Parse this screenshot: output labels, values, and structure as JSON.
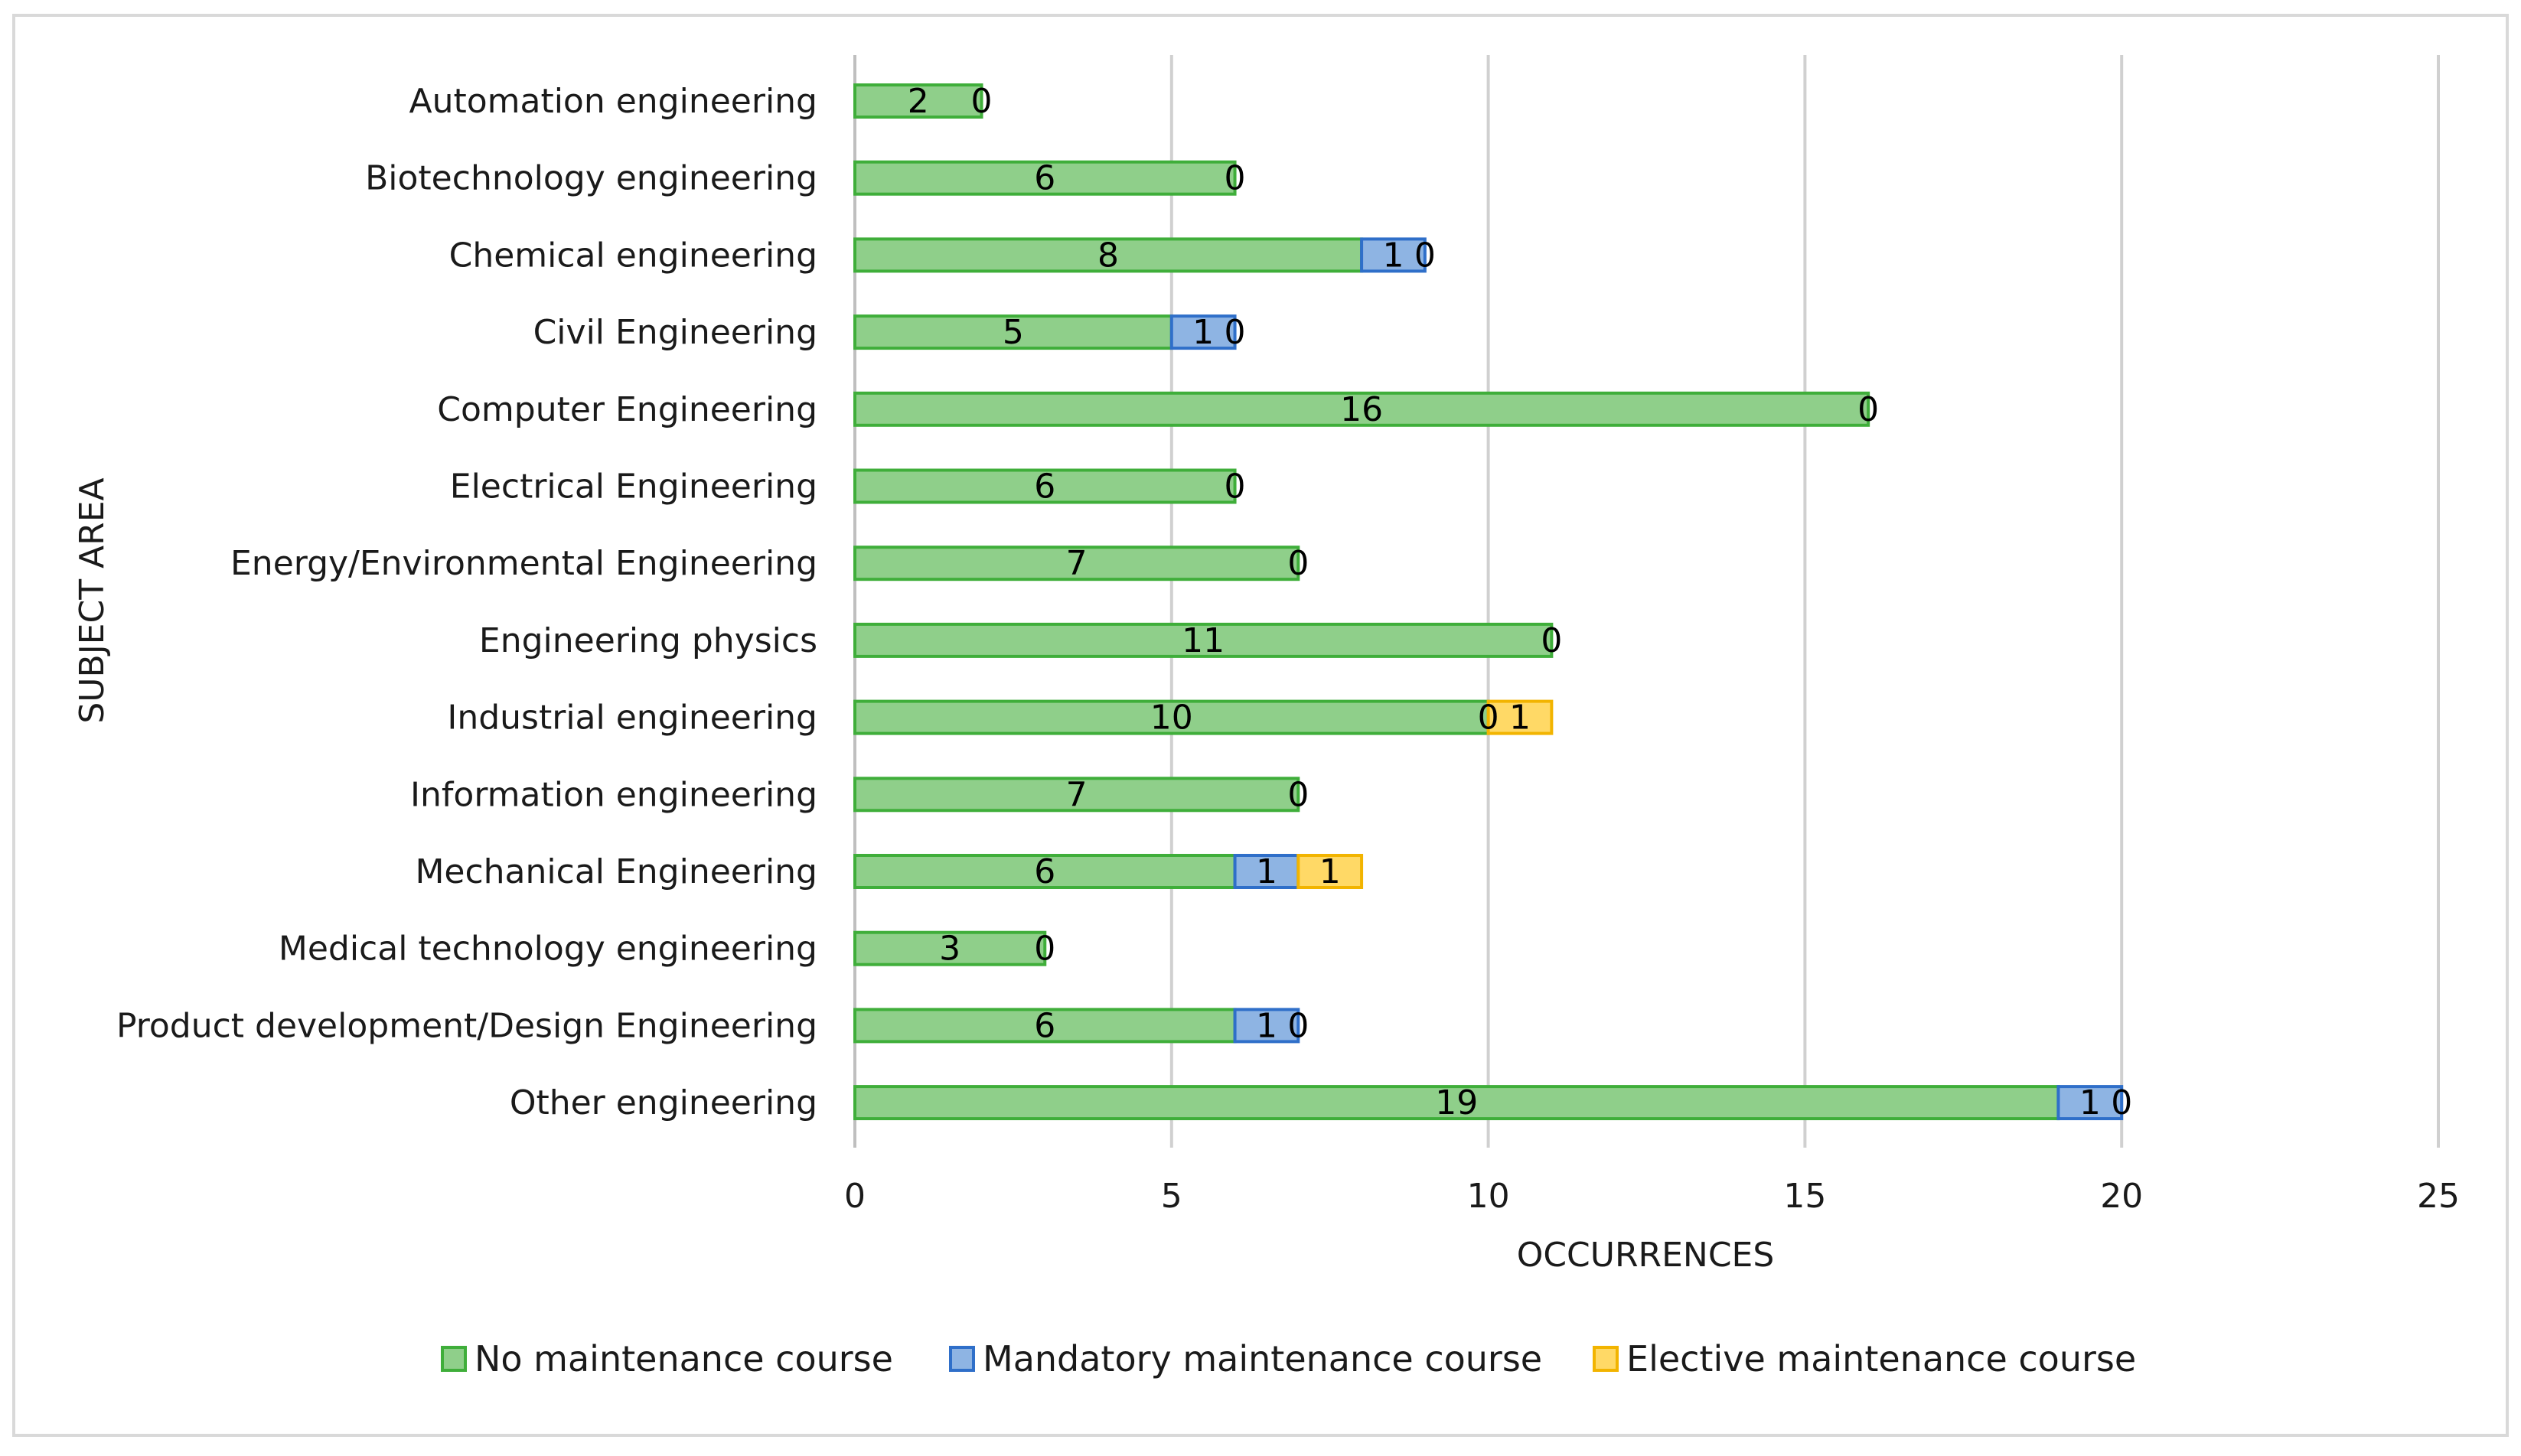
{
  "chart_data": {
    "type": "bar",
    "orientation": "horizontal",
    "stacked": true,
    "categories": [
      "Automation engineering",
      "Biotechnology engineering",
      "Chemical engineering",
      "Civil Engineering",
      "Computer Engineering",
      "Electrical Engineering",
      "Energy/Environmental Engineering",
      "Engineering physics",
      "Industrial engineering",
      "Information engineering",
      "Mechanical Engineering",
      "Medical technology engineering",
      "Product development/Design Engineering",
      "Other engineering"
    ],
    "series": [
      {
        "name": "No maintenance course",
        "color": "#8fcf8a",
        "edge": "#3fae3a",
        "values": [
          2,
          6,
          8,
          5,
          16,
          6,
          7,
          11,
          10,
          7,
          6,
          3,
          6,
          19
        ]
      },
      {
        "name": "Mandatory maintenance course",
        "color": "#8eb4e3",
        "edge": "#2f6fc9",
        "values": [
          null,
          null,
          1,
          1,
          null,
          null,
          null,
          null,
          0,
          null,
          1,
          null,
          1,
          1
        ]
      },
      {
        "name": "Elective maintenance course",
        "color": "#ffd966",
        "edge": "#f2b400",
        "values": [
          0,
          0,
          0,
          0,
          0,
          0,
          0,
          0,
          1,
          0,
          1,
          0,
          0,
          0
        ]
      }
    ],
    "title": "",
    "xlabel": "OCCURRENCES",
    "ylabel": "SUBJECT AREA",
    "xlim": [
      0,
      25
    ],
    "xticks": [
      0,
      5,
      10,
      15,
      20,
      25
    ],
    "grid": "vertical",
    "legend": "bottom"
  }
}
